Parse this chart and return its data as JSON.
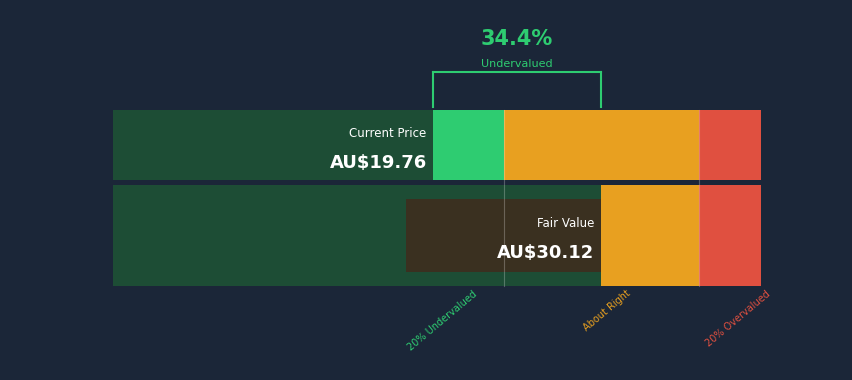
{
  "bg_color": "#1b2638",
  "green_color": "#2ecc71",
  "dark_green_color": "#1d4d35",
  "orange_color": "#e8a020",
  "red_color": "#e05040",
  "current_price": 19.76,
  "fair_value": 30.12,
  "x_max": 40.0,
  "undervalued_pct": "34.4%",
  "undervalued_label": "Undervalued",
  "current_price_label": "Current Price",
  "current_price_text": "AU$19.76",
  "fair_value_label": "Fair Value",
  "fair_value_text": "AU$30.12",
  "label_20u": "20% Undervalued",
  "label_ar": "About Right",
  "label_20o": "20% Overvalued",
  "green_label_color": "#2ecc71",
  "orange_label_color": "#e8a020",
  "red_label_color": "#e05040",
  "bracket_color": "#2ecc71",
  "title_color": "#2ecc71",
  "subtitle_color": "#2ecc71",
  "cp_box_color": "#1d4d35",
  "fv_box_color": "#3a3020"
}
